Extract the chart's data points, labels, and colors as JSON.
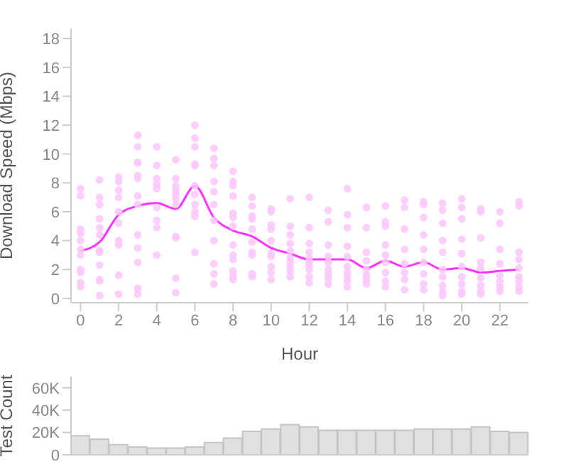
{
  "chart_data": [
    {
      "type": "scatter",
      "xlabel": "Hour",
      "ylabel": "Download Speed (Mbps)",
      "xlim": [
        -0.5,
        23.5
      ],
      "ylim": [
        -0.3,
        18.7
      ],
      "xticks": [
        0,
        2,
        4,
        6,
        8,
        10,
        12,
        14,
        16,
        18,
        20,
        22
      ],
      "yticks": [
        0,
        2,
        4,
        6,
        8,
        10,
        12,
        14,
        16,
        18
      ],
      "grid": false,
      "series": [
        {
          "type": "scatter",
          "color": "#fcc5fc",
          "marker": "circle",
          "x": [
            0,
            0,
            0,
            0,
            0,
            0,
            0,
            0,
            0,
            0,
            0,
            1,
            1,
            1,
            1,
            1,
            1,
            1,
            1,
            1,
            1,
            1,
            1,
            2,
            2,
            2,
            2,
            2,
            2,
            2,
            2,
            2,
            2,
            3,
            3,
            3,
            3,
            3,
            3,
            3,
            3,
            3,
            3,
            3,
            3,
            3,
            4,
            4,
            4,
            4,
            4,
            4,
            4,
            4,
            4,
            5,
            5,
            5,
            5,
            5,
            5,
            5,
            5,
            5,
            5,
            5,
            6,
            6,
            6,
            6,
            6,
            6,
            6,
            6,
            6,
            6,
            6,
            7,
            7,
            7,
            7,
            7,
            7,
            7,
            7,
            7,
            7,
            7,
            8,
            8,
            8,
            8,
            8,
            8,
            8,
            8,
            8,
            8,
            8,
            8,
            8,
            9,
            9,
            9,
            9,
            9,
            9,
            9,
            9,
            9,
            9,
            10,
            10,
            10,
            10,
            10,
            10,
            10,
            10,
            10,
            10,
            11,
            11,
            11,
            11,
            11,
            11,
            11,
            11,
            11,
            11,
            12,
            12,
            12,
            12,
            12,
            12,
            12,
            12,
            12,
            12,
            13,
            13,
            13,
            13,
            13,
            13,
            13,
            13,
            13,
            14,
            14,
            14,
            14,
            14,
            14,
            14,
            14,
            14,
            14,
            15,
            15,
            15,
            15,
            15,
            15,
            15,
            15,
            16,
            16,
            16,
            16,
            16,
            16,
            16,
            16,
            16,
            17,
            17,
            17,
            17,
            17,
            17,
            17,
            17,
            18,
            18,
            18,
            18,
            18,
            18,
            18,
            18,
            18,
            19,
            19,
            19,
            19,
            19,
            19,
            19,
            19,
            19,
            19,
            20,
            20,
            20,
            20,
            20,
            20,
            20,
            20,
            20,
            20,
            21,
            21,
            21,
            21,
            21,
            21,
            21,
            21,
            21,
            22,
            22,
            22,
            22,
            22,
            22,
            22,
            22,
            23,
            23,
            23,
            23,
            23,
            23,
            23,
            23,
            23
          ],
          "values": [
            7.6,
            7.1,
            4.8,
            4.5,
            4.0,
            3.4,
            3.0,
            2.0,
            1.8,
            1.1,
            0.8,
            8.2,
            7.0,
            6.5,
            5.5,
            4.9,
            4.4,
            3.3,
            3.2,
            2.3,
            1.3,
            1.2,
            0.2,
            8.4,
            8.1,
            7.5,
            7.0,
            6.0,
            5.2,
            4.0,
            3.7,
            1.6,
            0.3,
            11.3,
            10.5,
            9.4,
            9.4,
            8.5,
            8.3,
            7.1,
            6.5,
            4.4,
            3.5,
            2.5,
            0.7,
            0.3,
            10.5,
            9.2,
            8.3,
            7.9,
            7.6,
            6.3,
            5.4,
            4.9,
            3.0,
            9.6,
            8.3,
            7.8,
            7.5,
            7.2,
            6.9,
            6.5,
            4.3,
            4.2,
            1.4,
            0.4,
            12.0,
            11.1,
            10.5,
            9.3,
            9.2,
            7.8,
            7.2,
            6.5,
            6.0,
            5.7,
            3.2,
            10.4,
            9.7,
            9.2,
            8.1,
            7.4,
            6.5,
            5.4,
            4.0,
            2.4,
            1.7,
            1.0,
            8.8,
            8.1,
            7.8,
            7.1,
            5.9,
            5.6,
            5.0,
            3.7,
            3.0,
            2.7,
            1.9,
            1.6,
            1.3,
            7.0,
            6.4,
            5.7,
            5.5,
            4.8,
            3.9,
            3.2,
            3.0,
            1.7,
            1.5,
            6.2,
            6.0,
            5.1,
            4.8,
            4.0,
            3.1,
            2.9,
            2.2,
            1.8,
            1.3,
            6.9,
            5.0,
            4.4,
            3.8,
            3.3,
            2.8,
            2.5,
            2.2,
            1.9,
            1.5,
            7.0,
            4.9,
            3.8,
            3.2,
            2.8,
            2.5,
            2.3,
            2.0,
            1.5,
            1.1,
            6.1,
            5.3,
            3.7,
            2.9,
            2.5,
            2.0,
            1.7,
            1.4,
            1.0,
            7.6,
            5.8,
            4.9,
            3.6,
            2.9,
            2.2,
            1.8,
            1.5,
            1.2,
            0.8,
            6.3,
            4.9,
            3.2,
            2.6,
            2.0,
            1.6,
            1.3,
            1.0,
            6.4,
            5.3,
            5.0,
            3.7,
            3.0,
            2.5,
            1.8,
            1.2,
            0.8,
            6.8,
            6.3,
            4.8,
            3.4,
            2.4,
            1.8,
            1.3,
            0.6,
            6.7,
            6.5,
            5.6,
            4.4,
            3.4,
            2.5,
            1.7,
            1.0,
            0.6,
            6.6,
            6.1,
            5.2,
            4.0,
            3.2,
            2.0,
            1.5,
            0.9,
            0.5,
            0.2,
            6.9,
            6.3,
            5.5,
            4.1,
            3.1,
            2.2,
            1.5,
            1.0,
            0.5,
            0.3,
            6.2,
            6.0,
            4.2,
            2.5,
            2.1,
            1.4,
            0.9,
            0.5,
            0.3,
            6.0,
            5.2,
            3.4,
            2.4,
            1.6,
            1.2,
            0.8,
            0.5,
            6.7,
            6.4,
            3.2,
            2.7,
            2.1,
            1.5,
            1.2,
            0.8,
            0.5
          ]
        },
        {
          "type": "line",
          "color": "#ff33ff",
          "x": [
            0,
            1,
            2,
            3,
            4,
            5,
            6,
            7,
            8,
            9,
            10,
            11,
            12,
            13,
            14,
            15,
            16,
            17,
            18,
            19,
            20,
            21,
            22,
            23
          ],
          "values": [
            3.3,
            3.9,
            5.8,
            6.4,
            6.6,
            6.2,
            7.8,
            5.6,
            4.7,
            4.3,
            3.5,
            3.1,
            2.7,
            2.7,
            2.7,
            2.1,
            2.6,
            2.2,
            2.5,
            2.0,
            2.1,
            1.8,
            1.9,
            2.0
          ]
        }
      ]
    },
    {
      "type": "bar",
      "ylabel": "Test Count",
      "categories": [
        null,
        null,
        null,
        null,
        null,
        null,
        null,
        null,
        null,
        null,
        null,
        null,
        null,
        null,
        null,
        null,
        null,
        null,
        null,
        null,
        null,
        null,
        null,
        null
      ],
      "values": [
        17000,
        14000,
        9000,
        7000,
        6000,
        6000,
        7000,
        11000,
        15000,
        21000,
        23000,
        27000,
        25000,
        22000,
        22000,
        22000,
        22000,
        22000,
        23000,
        23000,
        23000,
        25000,
        21000,
        20000
      ],
      "color": "#e0e0e0",
      "ylim": [
        0,
        70000
      ],
      "yticks": [
        0,
        {
          "value": 20000,
          "label": "20K"
        },
        {
          "value": 40000,
          "label": "40K"
        },
        {
          "value": 60000,
          "label": "60K"
        }
      ],
      "tick_labels": "y",
      "grid": false
    }
  ]
}
